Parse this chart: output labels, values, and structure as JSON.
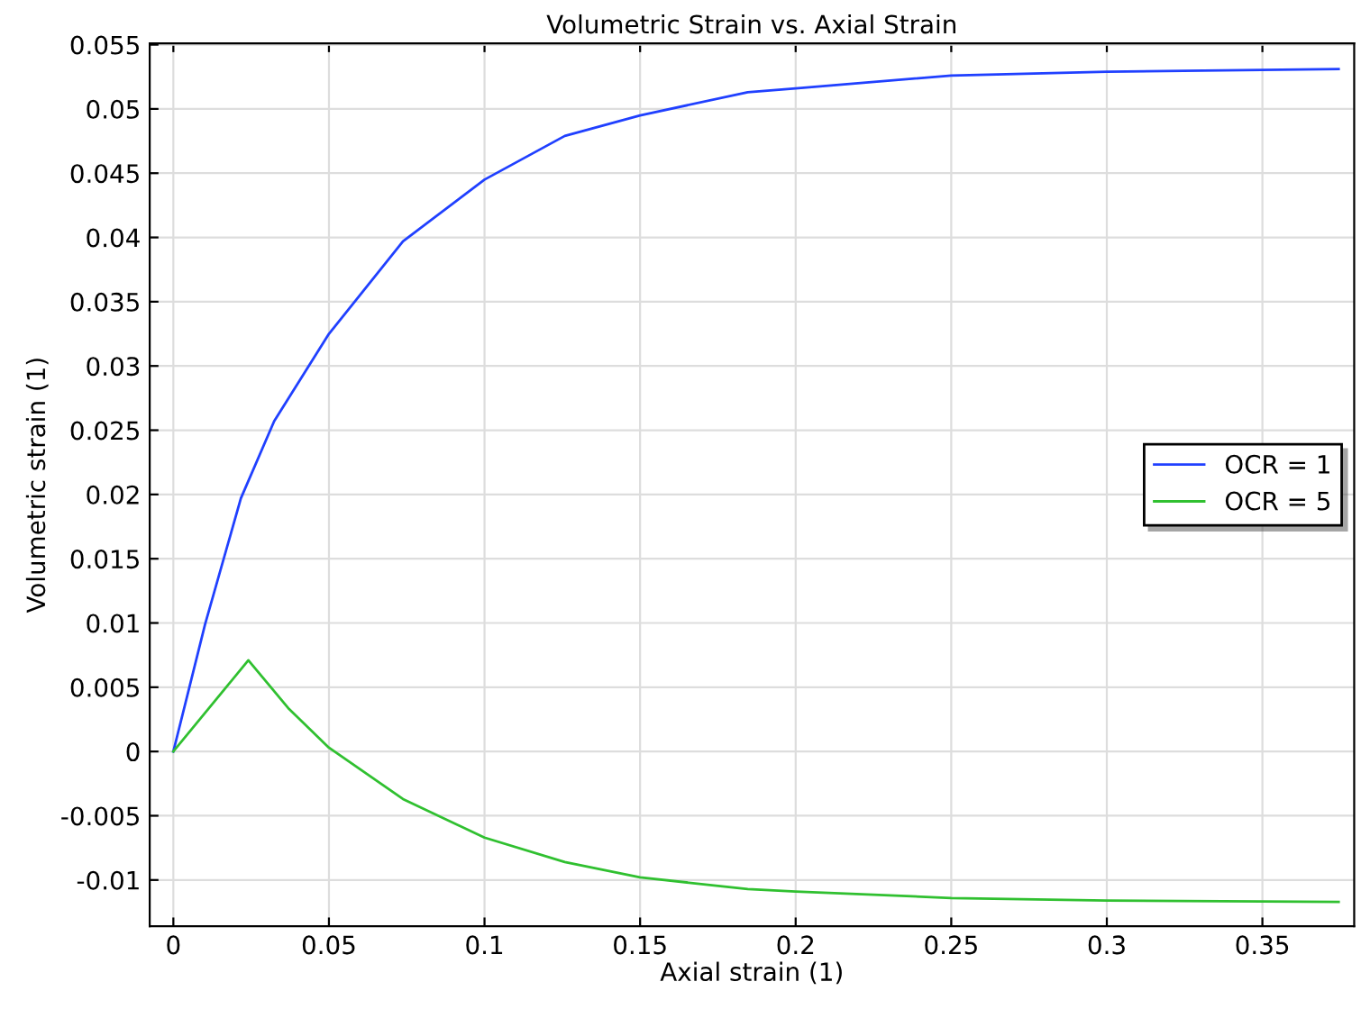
{
  "chart_data": {
    "type": "line",
    "title": "Volumetric Strain vs. Axial Strain",
    "xlabel": "Axial strain (1)",
    "ylabel": "Volumetric strain (1)",
    "series": [
      {
        "name": "OCR = 1",
        "color": "#2040ff",
        "x": [
          0,
          0.0102,
          0.0217,
          0.0324,
          0.05,
          0.0738,
          0.1,
          0.1258,
          0.15,
          0.1846,
          0.2,
          0.25,
          0.3,
          0.3745
        ],
        "values": [
          0,
          0.0099,
          0.0197,
          0.0257,
          0.0325,
          0.0397,
          0.0445,
          0.0479,
          0.0495,
          0.0513,
          0.0516,
          0.0526,
          0.0529,
          0.0531
        ]
      },
      {
        "name": "OCR = 5",
        "color": "#30c030",
        "x": [
          0,
          0.0241,
          0.0372,
          0.05,
          0.0738,
          0.1,
          0.1258,
          0.15,
          0.1846,
          0.2,
          0.25,
          0.3,
          0.3745
        ],
        "values": [
          0,
          0.0071,
          0.0033,
          0.0003,
          -0.0037,
          -0.0067,
          -0.0086,
          -0.0098,
          -0.0107,
          -0.0109,
          -0.0114,
          -0.0116,
          -0.0117
        ]
      }
    ],
    "xlim": [
      -0.0076,
      0.3795
    ],
    "xticks": [
      0,
      0.05,
      0.1,
      0.15,
      0.2,
      0.25,
      0.3,
      0.35
    ],
    "ylim": [
      -0.0136,
      0.0551
    ],
    "yticks": [
      -0.01,
      -0.005,
      0,
      0.005,
      0.01,
      0.015,
      0.02,
      0.025,
      0.03,
      0.035,
      0.04,
      0.045,
      0.05,
      0.055
    ],
    "grid": true,
    "legend": "right",
    "marker": "none",
    "line_style": "solid"
  }
}
